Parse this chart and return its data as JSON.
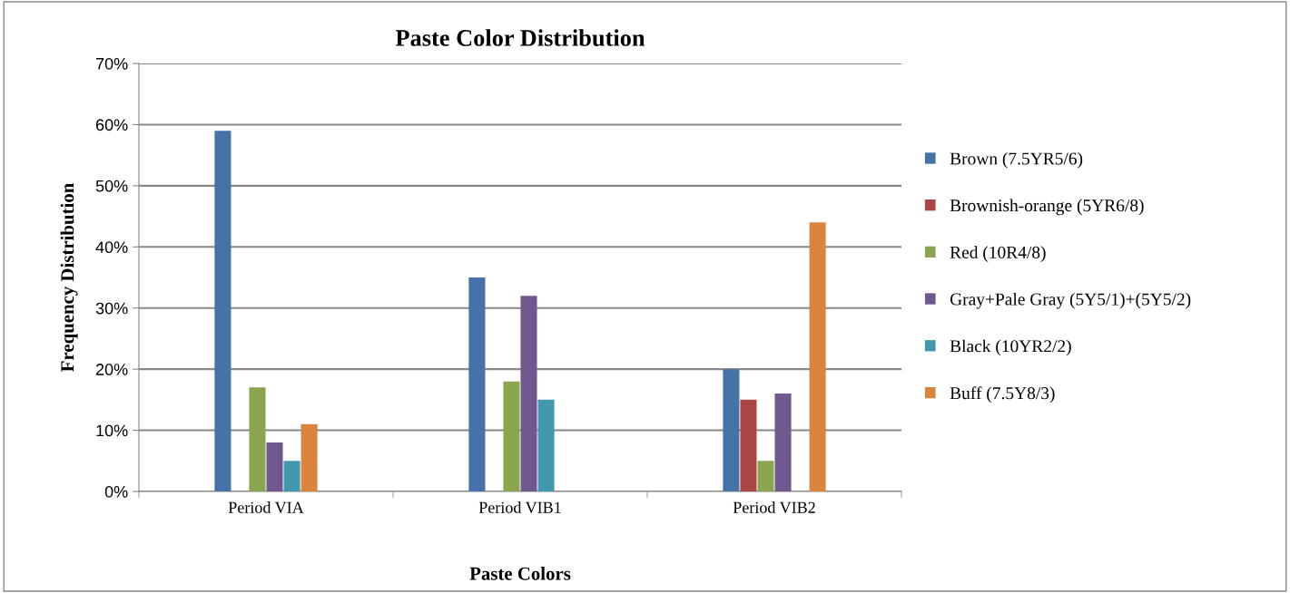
{
  "chart_data": {
    "type": "bar",
    "title": "Paste Color Distribution",
    "xlabel": "Paste Colors",
    "ylabel": "Frequency Distribution",
    "categories": [
      "Period VIA",
      "Period VIB1",
      "Period VIB2"
    ],
    "series": [
      {
        "name": "Brown (7.5YR5/6)",
        "color": "#4572a7",
        "values": [
          59,
          35,
          20
        ]
      },
      {
        "name": "Brownish-orange (5YR6/8)",
        "color": "#aa4643",
        "values": [
          0,
          0,
          15
        ]
      },
      {
        "name": "Red (10R4/8)",
        "color": "#89a54e",
        "values": [
          17,
          18,
          5
        ]
      },
      {
        "name": "Gray+Pale Gray (5Y5/1)+(5Y5/2)",
        "color": "#71588f",
        "values": [
          8,
          32,
          16
        ]
      },
      {
        "name": "Black (10YR2/2)",
        "color": "#4198af",
        "values": [
          5,
          15,
          0
        ]
      },
      {
        "name": "Buff (7.5Y8/3)",
        "color": "#db843d",
        "values": [
          11,
          0,
          44
        ]
      }
    ],
    "ylim": [
      0,
      70
    ],
    "yticks": [
      {
        "value": 0,
        "label": "0%"
      },
      {
        "value": 10,
        "label": "10%"
      },
      {
        "value": 20,
        "label": "20%"
      },
      {
        "value": 30,
        "label": "30%"
      },
      {
        "value": 40,
        "label": "40%"
      },
      {
        "value": 50,
        "label": "50%"
      },
      {
        "value": 60,
        "label": "60%"
      },
      {
        "value": 70,
        "label": "70%"
      }
    ],
    "grid": "y",
    "legend": "right"
  }
}
